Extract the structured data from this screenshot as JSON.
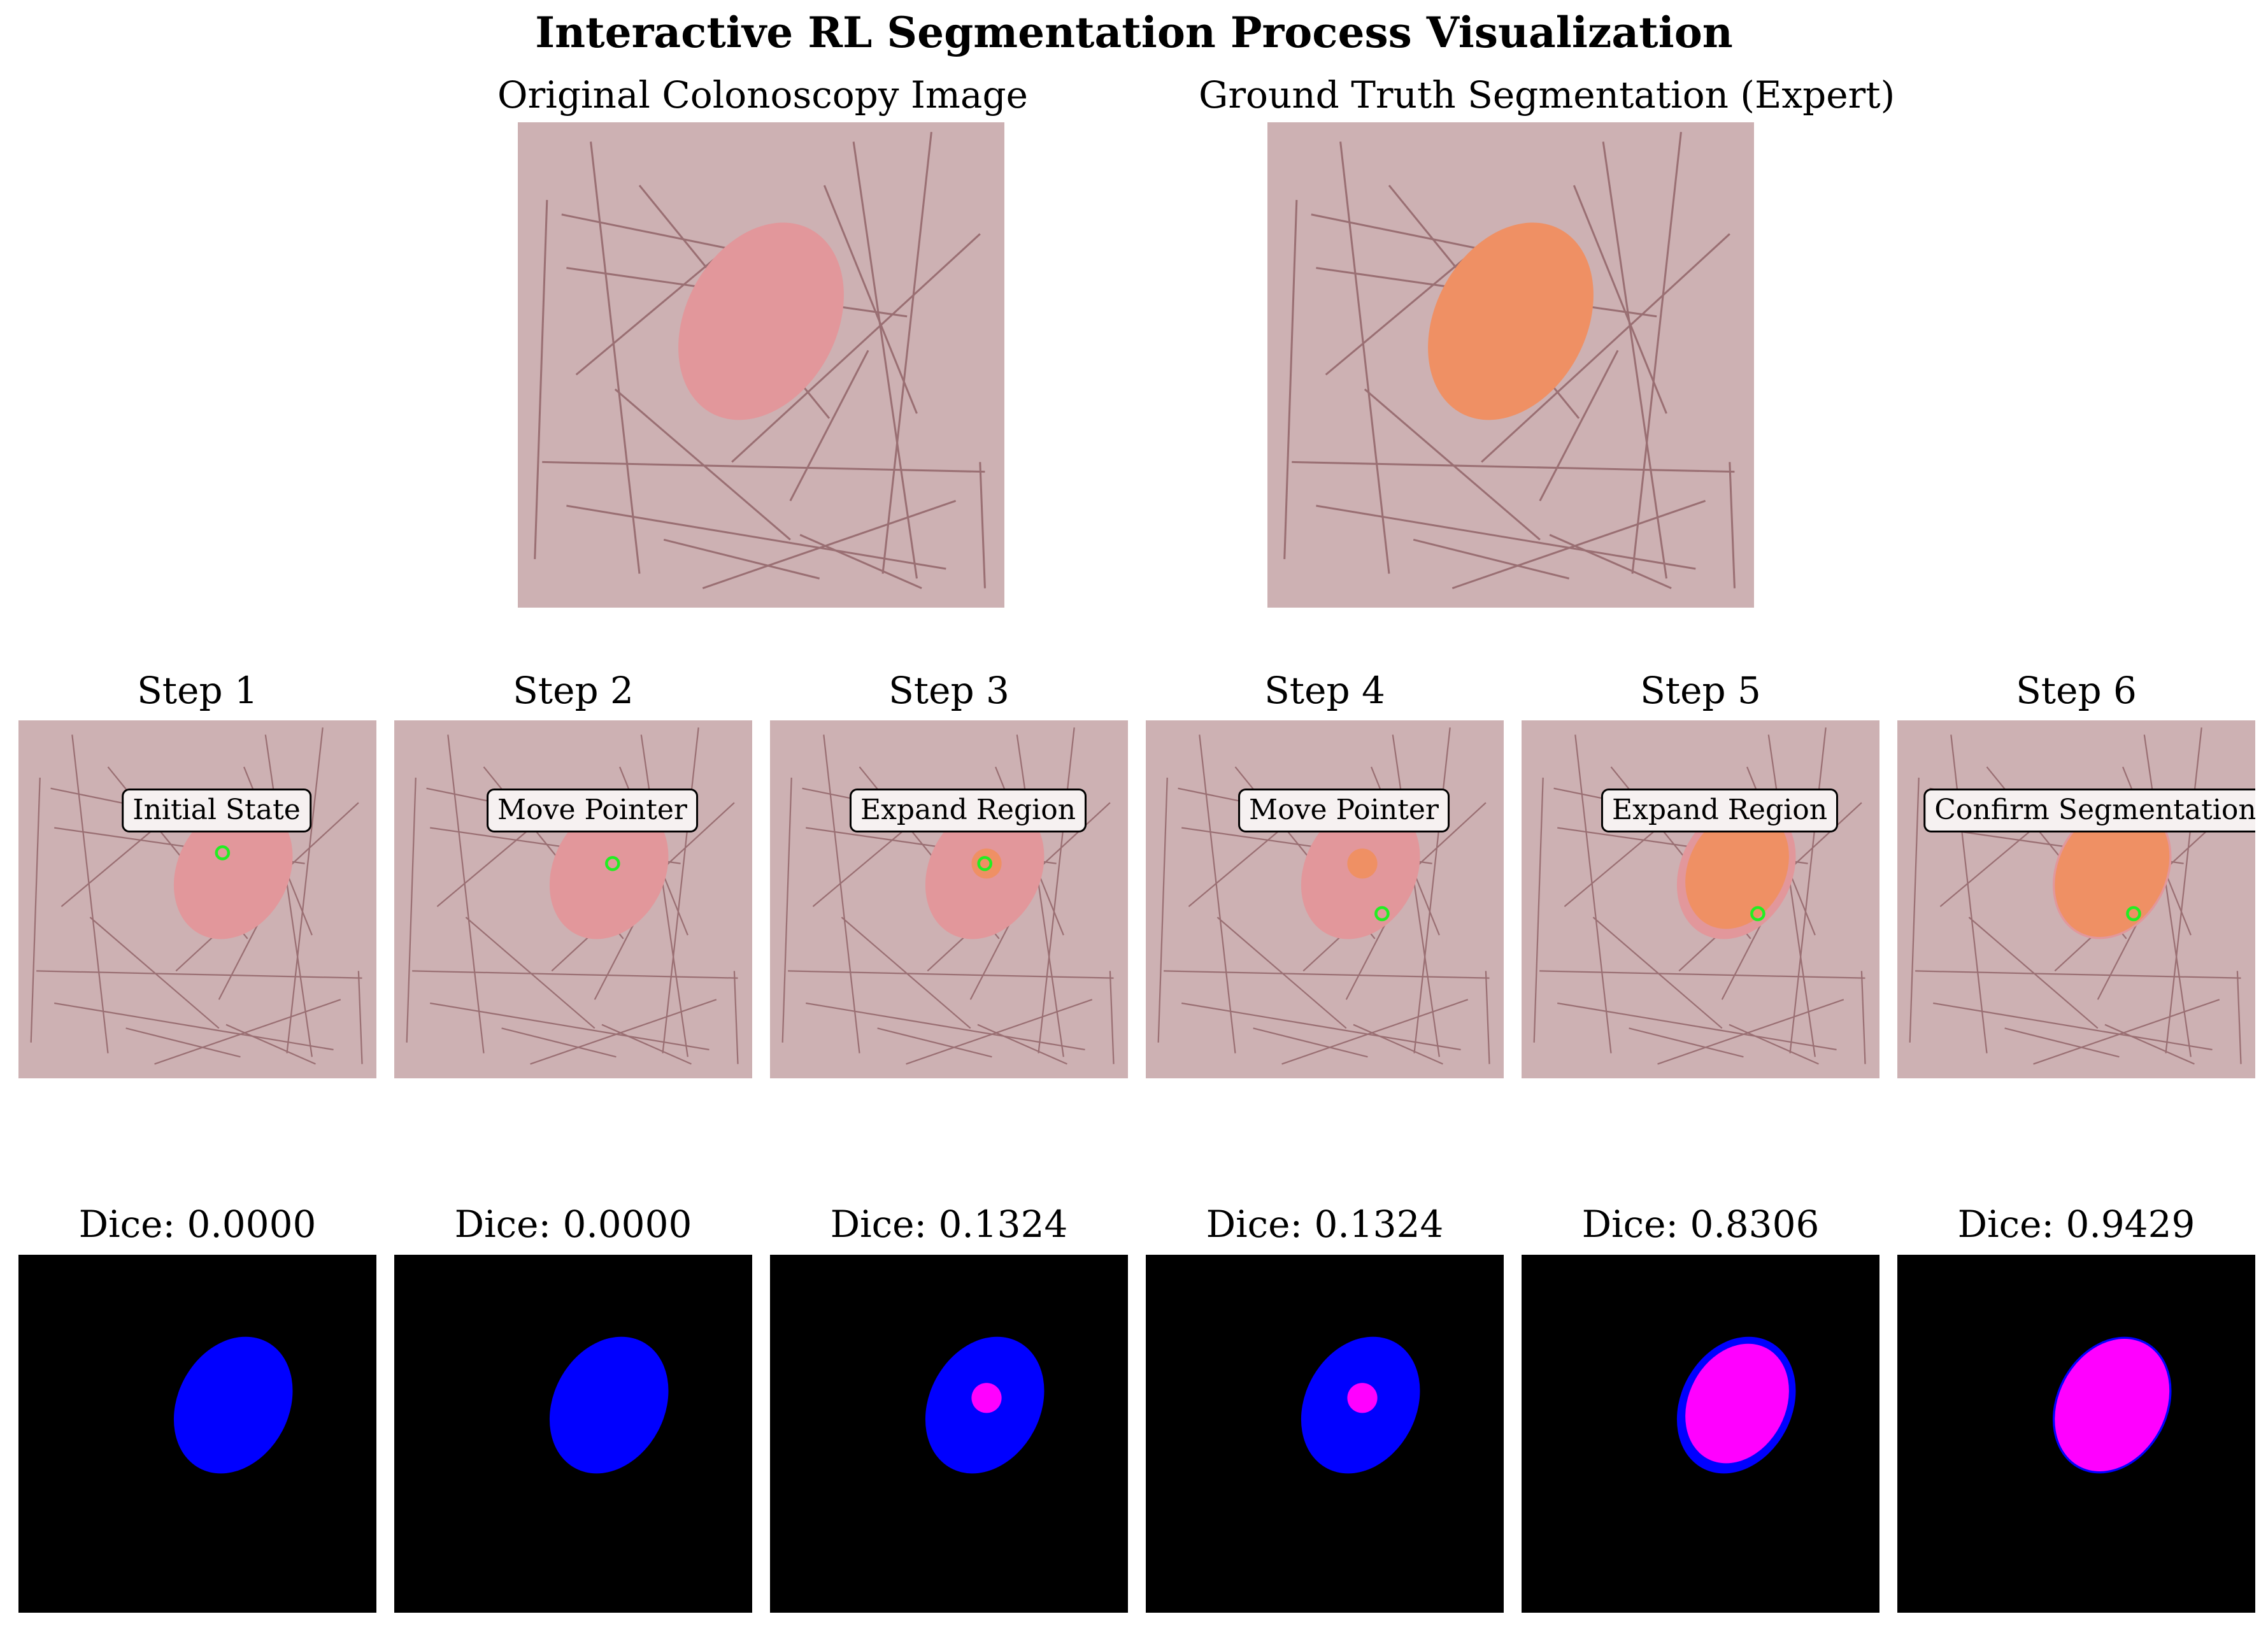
{
  "title": "Interactive RL Segmentation Process Visualization",
  "top_panels": [
    {
      "title": "Original Colonoscopy Image"
    },
    {
      "title": "Ground Truth Segmentation (Expert)"
    }
  ],
  "steps": [
    {
      "title": "Step 1",
      "action": "Initial State",
      "dice_label": "Dice: 0.0000",
      "dice": 0.0,
      "pointer": [
        0.57,
        0.37
      ],
      "prediction": "none"
    },
    {
      "title": "Step 2",
      "action": "Move Pointer",
      "dice_label": "Dice: 0.0000",
      "dice": 0.0,
      "pointer": [
        0.61,
        0.4
      ],
      "prediction": "none"
    },
    {
      "title": "Step 3",
      "action": "Expand Region",
      "dice_label": "Dice: 0.1324",
      "dice": 0.1324,
      "pointer": [
        0.6,
        0.4
      ],
      "prediction": "small-dot"
    },
    {
      "title": "Step 4",
      "action": "Move Pointer",
      "dice_label": "Dice: 0.1324",
      "dice": 0.1324,
      "pointer": [
        0.66,
        0.54
      ],
      "prediction": "small-dot"
    },
    {
      "title": "Step 5",
      "action": "Expand Region",
      "dice_label": "Dice: 0.8306",
      "dice": 0.8306,
      "pointer": [
        0.66,
        0.54
      ],
      "prediction": "large-ellipse"
    },
    {
      "title": "Step 6",
      "action": "Confirm Segmentation",
      "dice_label": "Dice: 0.9429",
      "dice": 0.9429,
      "pointer": [
        0.66,
        0.54
      ],
      "prediction": "near-full-ellipse"
    }
  ],
  "colors": {
    "background_tissue": "#cdb1b3",
    "vessel_lines": "#9a6f73",
    "polyp": "#e2979b",
    "ground_truth_overlay": "#ef9064",
    "pointer": "#22ee22",
    "mask_background": "#000000",
    "mask_ground_truth": "#0000ff",
    "mask_prediction": "#ff00ff"
  }
}
